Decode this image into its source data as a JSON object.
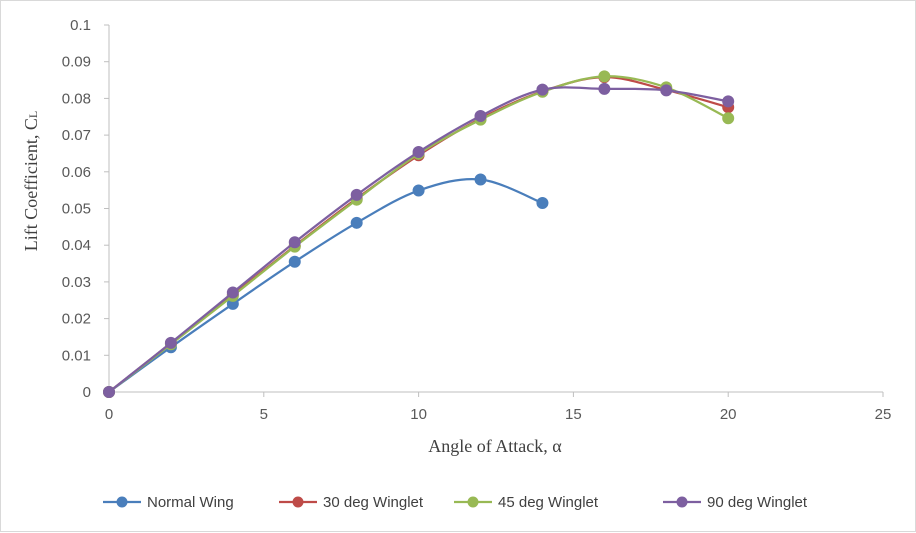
{
  "chart_data": {
    "type": "line",
    "title": "",
    "xlabel": "Angle of Attack, α",
    "ylabel_main": "Lift Coefficient, C",
    "ylabel_sub": "L",
    "xlim": [
      0,
      25
    ],
    "ylim": [
      0,
      0.1
    ],
    "xticks": [
      0,
      5,
      10,
      15,
      20,
      25
    ],
    "yticks": [
      0,
      0.01,
      0.02,
      0.03,
      0.04,
      0.05,
      0.06,
      0.07,
      0.08,
      0.09,
      0.1
    ],
    "grid": false,
    "legend_position": "bottom",
    "smooth": true,
    "series": [
      {
        "name": "Normal Wing",
        "color": "#4a7ebb",
        "x": [
          0,
          2,
          4,
          6,
          8,
          10,
          12,
          14
        ],
        "y": [
          0,
          0.0122,
          0.024,
          0.0355,
          0.0461,
          0.0549,
          0.0579,
          0.0515
        ]
      },
      {
        "name": "30 deg Winglet",
        "color": "#be4b48",
        "x": [
          0,
          2,
          4,
          6,
          8,
          10,
          12,
          14,
          16,
          18,
          20
        ],
        "y": [
          0,
          0.0133,
          0.0265,
          0.0398,
          0.0527,
          0.0645,
          0.0745,
          0.0819,
          0.0858,
          0.0823,
          0.0776
        ]
      },
      {
        "name": "45 deg Winglet",
        "color": "#98b954",
        "x": [
          0,
          2,
          4,
          6,
          8,
          10,
          12,
          14,
          16,
          18,
          20
        ],
        "y": [
          0,
          0.013,
          0.0262,
          0.0396,
          0.0524,
          0.0649,
          0.0742,
          0.0818,
          0.086,
          0.083,
          0.0746
        ]
      },
      {
        "name": "90 deg Winglet",
        "color": "#7d5fa0",
        "x": [
          0,
          2,
          4,
          6,
          8,
          10,
          12,
          14,
          16,
          18,
          20
        ],
        "y": [
          0,
          0.0134,
          0.0271,
          0.0408,
          0.0537,
          0.0654,
          0.0752,
          0.0824,
          0.0826,
          0.0822,
          0.0792
        ]
      }
    ]
  }
}
